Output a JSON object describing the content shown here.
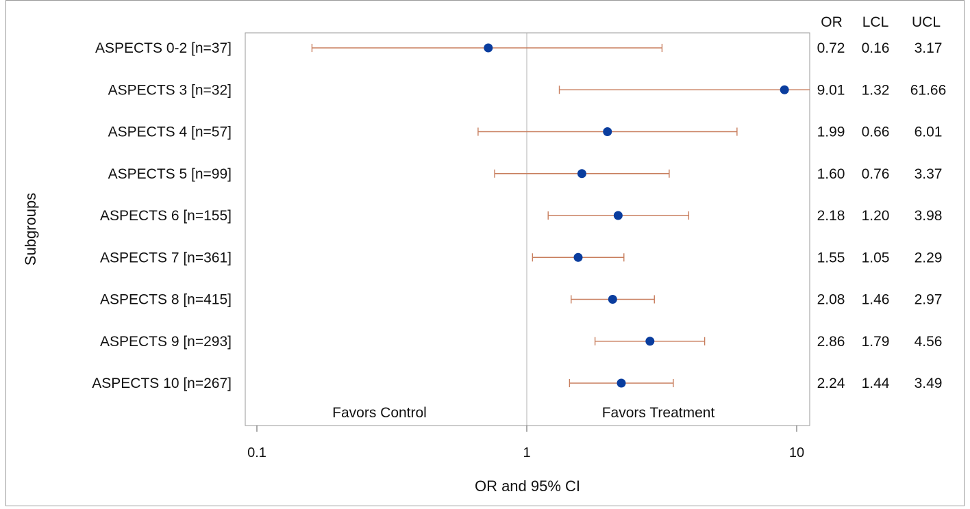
{
  "chart_data": {
    "type": "forest",
    "xlabel": "OR and 95% CI",
    "ylabel": "Subgroups",
    "x_scale": "log",
    "xlim": [
      0.08,
      11
    ],
    "x_ticks": [
      0.1,
      1,
      10
    ],
    "x_tick_labels": [
      "0.1",
      "1",
      "10"
    ],
    "reference_line": 1,
    "left_annotation": "Favors Control",
    "right_annotation": "Favors Treatment",
    "table_headers": [
      "OR",
      "LCL",
      "UCL"
    ],
    "rows": [
      {
        "label": "ASPECTS 0-2 [n=37]",
        "or": 0.72,
        "lcl": 0.16,
        "ucl": 3.17,
        "or_text": "0.72",
        "lcl_text": "0.16",
        "ucl_text": "3.17"
      },
      {
        "label": "ASPECTS 3 [n=32]",
        "or": 9.01,
        "lcl": 1.32,
        "ucl": 61.66,
        "or_text": "9.01",
        "lcl_text": "1.32",
        "ucl_text": "61.66"
      },
      {
        "label": "ASPECTS 4 [n=57]",
        "or": 1.99,
        "lcl": 0.66,
        "ucl": 6.01,
        "or_text": "1.99",
        "lcl_text": "0.66",
        "ucl_text": "6.01"
      },
      {
        "label": "ASPECTS 5 [n=99]",
        "or": 1.6,
        "lcl": 0.76,
        "ucl": 3.37,
        "or_text": "1.60",
        "lcl_text": "0.76",
        "ucl_text": "3.37"
      },
      {
        "label": "ASPECTS 6 [n=155]",
        "or": 2.18,
        "lcl": 1.2,
        "ucl": 3.98,
        "or_text": "2.18",
        "lcl_text": "1.20",
        "ucl_text": "3.98"
      },
      {
        "label": "ASPECTS 7 [n=361]",
        "or": 1.55,
        "lcl": 1.05,
        "ucl": 2.29,
        "or_text": "1.55",
        "lcl_text": "1.05",
        "ucl_text": "2.29"
      },
      {
        "label": "ASPECTS 8 [n=415]",
        "or": 2.08,
        "lcl": 1.46,
        "ucl": 2.97,
        "or_text": "2.08",
        "lcl_text": "1.46",
        "ucl_text": "2.97"
      },
      {
        "label": "ASPECTS 9 [n=293]",
        "or": 2.86,
        "lcl": 1.79,
        "ucl": 4.56,
        "or_text": "2.86",
        "lcl_text": "1.79",
        "ucl_text": "4.56"
      },
      {
        "label": "ASPECTS 10 [n=267]",
        "or": 2.24,
        "lcl": 1.44,
        "ucl": 3.49,
        "or_text": "2.24",
        "lcl_text": "1.44",
        "ucl_text": "3.49"
      }
    ],
    "colors": {
      "point": "#0a3d9e",
      "ci_line": "#c87e5e",
      "frame": "#9a9a9a",
      "reference_line": "#b0b0b0"
    }
  }
}
